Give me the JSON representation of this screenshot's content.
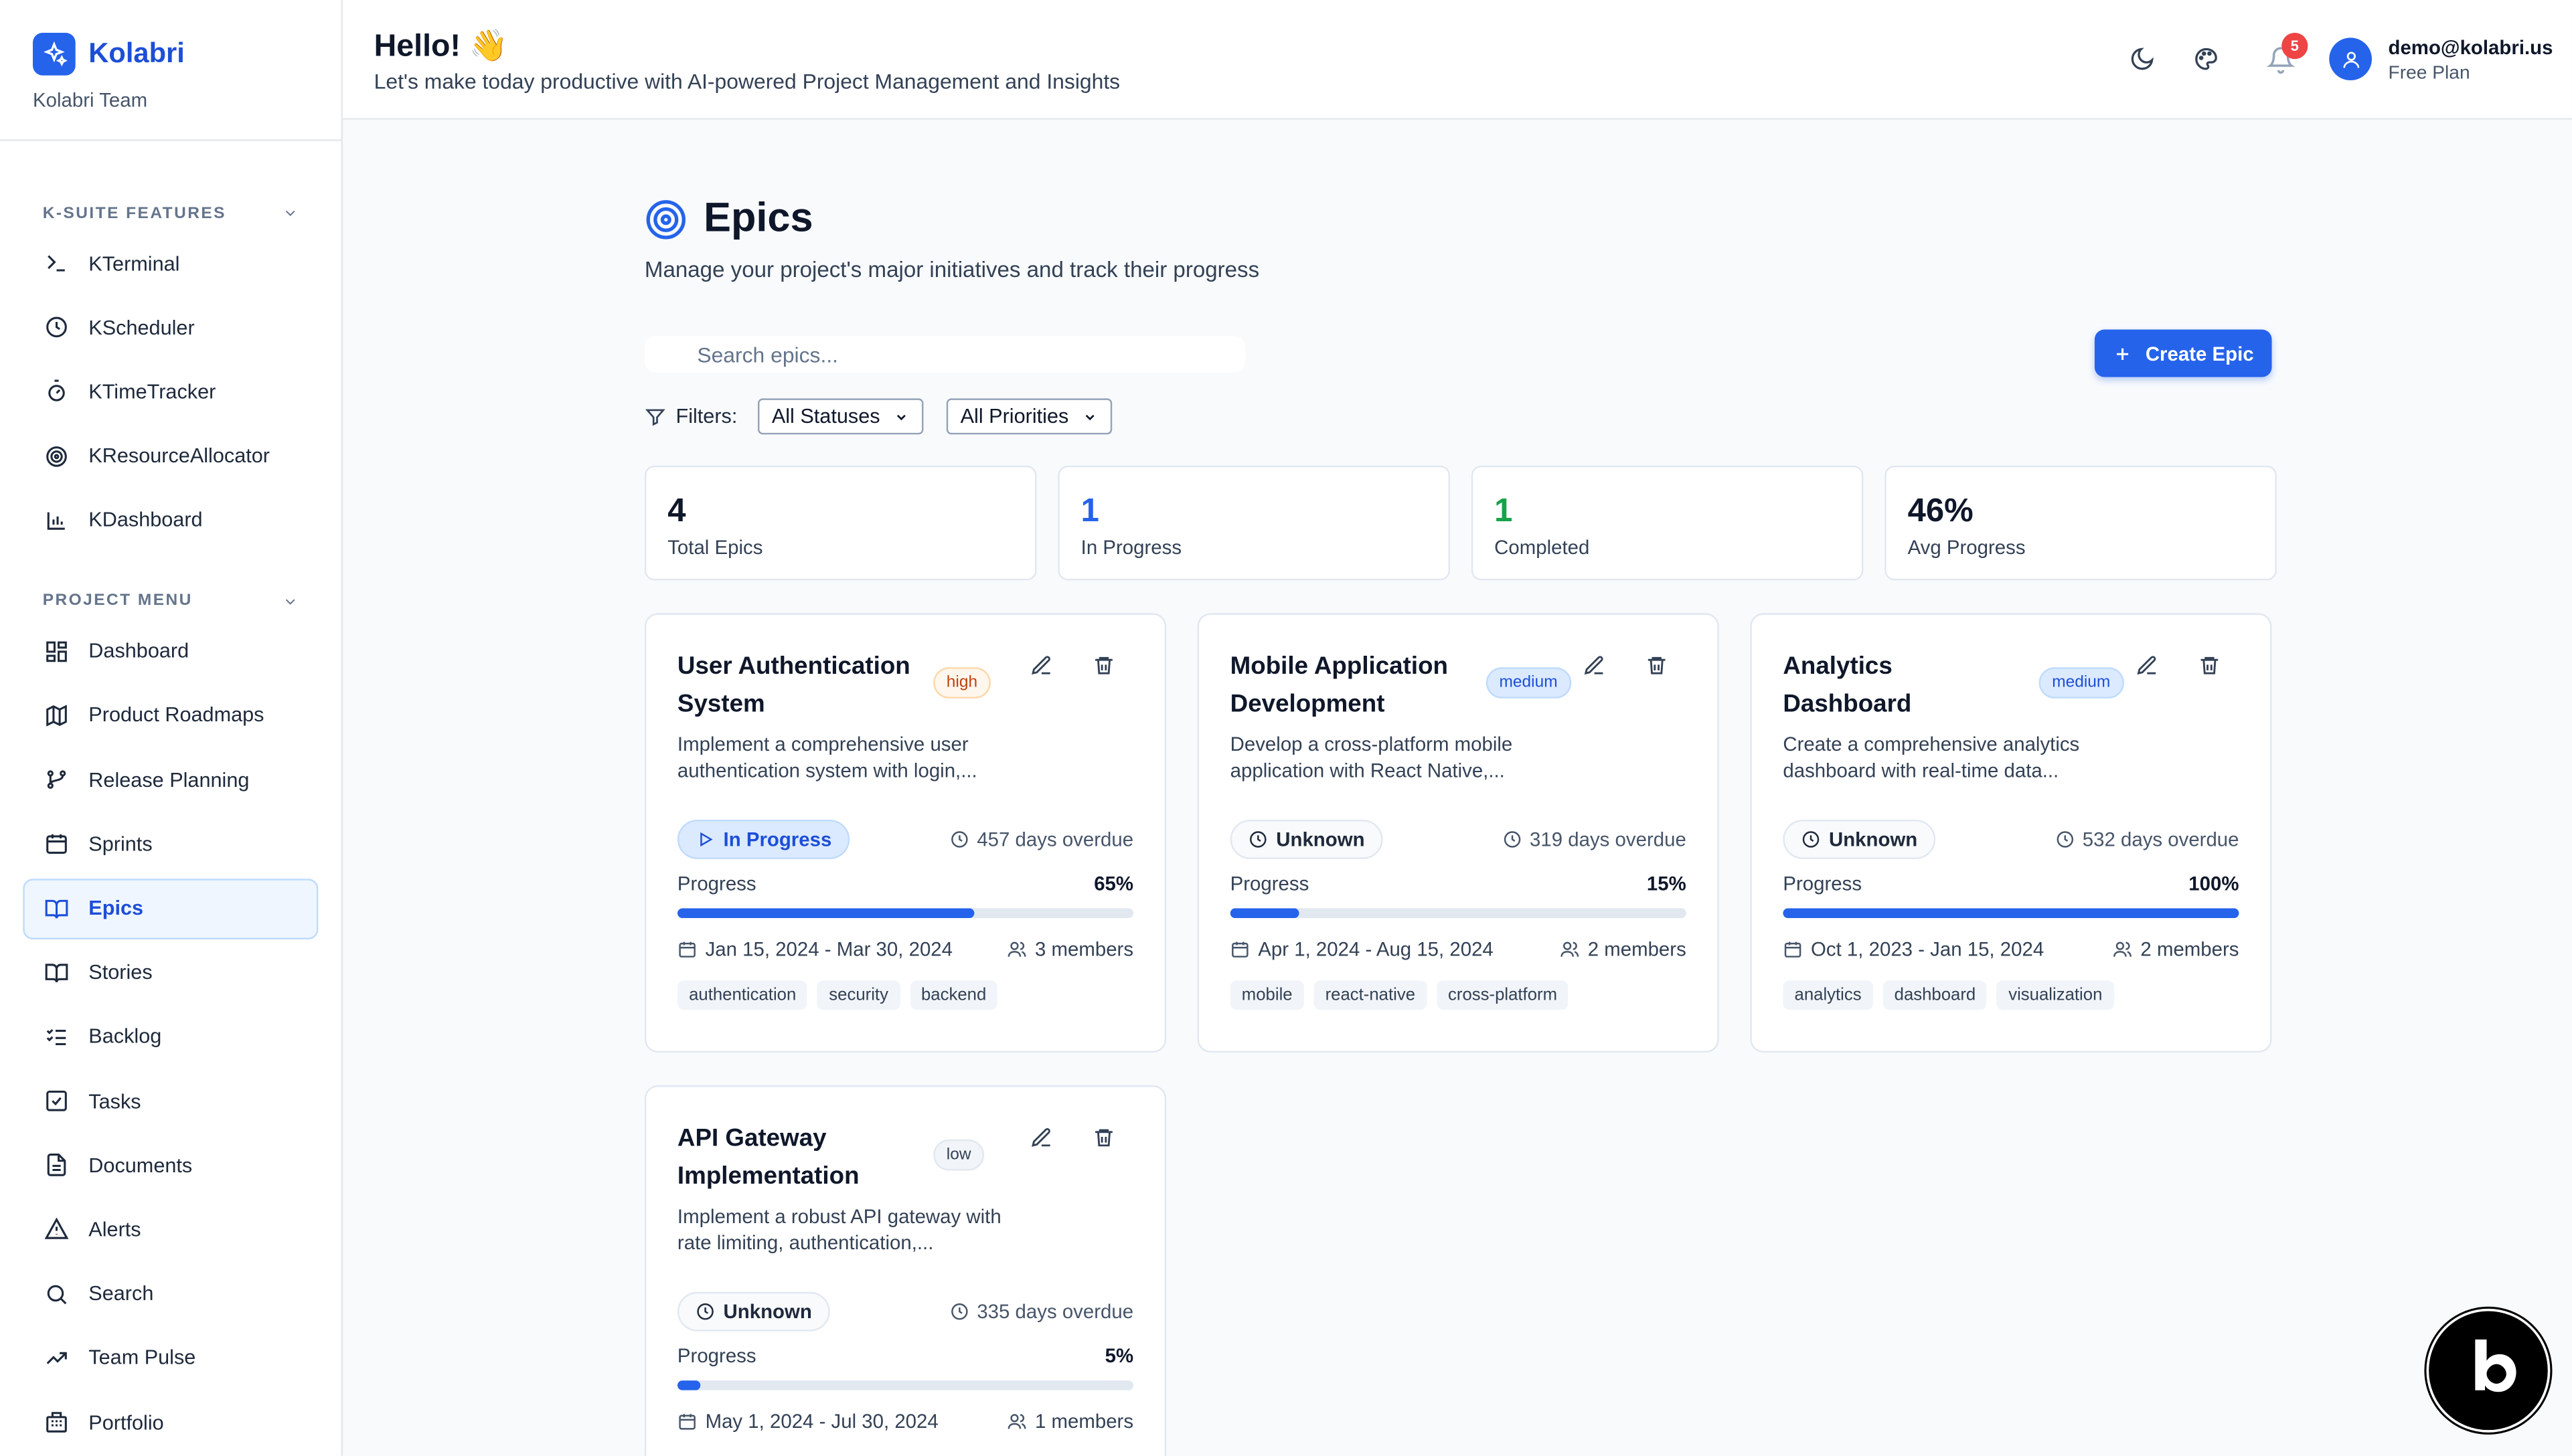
{
  "brand": {
    "name": "Kolabri",
    "team": "Kolabri Team"
  },
  "sidebar": {
    "ksuite_title": "K-SUITE FEATURES",
    "ksuite_items": [
      {
        "label": "KTerminal",
        "icon": "terminal-icon"
      },
      {
        "label": "KScheduler",
        "icon": "clock-icon"
      },
      {
        "label": "KTimeTracker",
        "icon": "timer-icon"
      },
      {
        "label": "KResourceAllocator",
        "icon": "target-icon"
      },
      {
        "label": "KDashboard",
        "icon": "bar-chart-icon"
      }
    ],
    "project_title": "PROJECT MENU",
    "project_items": [
      {
        "label": "Dashboard"
      },
      {
        "label": "Product Roadmaps"
      },
      {
        "label": "Release Planning"
      },
      {
        "label": "Sprints"
      },
      {
        "label": "Epics"
      },
      {
        "label": "Stories"
      },
      {
        "label": "Backlog"
      },
      {
        "label": "Tasks"
      },
      {
        "label": "Documents"
      },
      {
        "label": "Alerts"
      },
      {
        "label": "Search"
      },
      {
        "label": "Team Pulse"
      },
      {
        "label": "Portfolio"
      }
    ]
  },
  "header": {
    "greeting": "Hello! 👋",
    "subtitle": "Let's make today productive with AI-powered Project Management and Insights",
    "notification_count": "5",
    "user_email": "demo@kolabri.us",
    "user_plan": "Free Plan"
  },
  "page": {
    "title": "Epics",
    "subtitle": "Manage your project's major initiatives and track their progress",
    "search_placeholder": "Search epics...",
    "create_label": "Create Epic",
    "filters_label": "Filters:",
    "status_filter": "All Statuses",
    "priority_filter": "All Priorities"
  },
  "stats": [
    {
      "value": "4",
      "label": "Total Epics",
      "color": "#0f172a"
    },
    {
      "value": "1",
      "label": "In Progress",
      "color": "#2563eb"
    },
    {
      "value": "1",
      "label": "Completed",
      "color": "#16a34a"
    },
    {
      "value": "46%",
      "label": "Avg Progress",
      "color": "#0f172a"
    }
  ],
  "epics": [
    {
      "title": "User Authentication System",
      "priority": "high",
      "description": "Implement a comprehensive user authentication system with login,...",
      "status": "In Progress",
      "overdue": "457 days overdue",
      "progress_label": "Progress",
      "progress": "65%",
      "progress_value": 0.65,
      "dates": "Jan 15, 2024 - Mar 30, 2024",
      "members": "3 members",
      "tags": [
        "authentication",
        "security",
        "backend"
      ]
    },
    {
      "title": "Mobile Application Development",
      "priority": "medium",
      "description": "Develop a cross-platform mobile application with React Native,...",
      "status": "Unknown",
      "overdue": "319 days overdue",
      "progress_label": "Progress",
      "progress": "15%",
      "progress_value": 0.15,
      "dates": "Apr 1, 2024 - Aug 15, 2024",
      "members": "2 members",
      "tags": [
        "mobile",
        "react-native",
        "cross-platform"
      ]
    },
    {
      "title": "Analytics Dashboard",
      "priority": "medium",
      "description": "Create a comprehensive analytics dashboard with real-time data...",
      "status": "Unknown",
      "overdue": "532 days overdue",
      "progress_label": "Progress",
      "progress": "100%",
      "progress_value": 1.0,
      "dates": "Oct 1, 2023 - Jan 15, 2024",
      "members": "2 members",
      "tags": [
        "analytics",
        "dashboard",
        "visualization"
      ]
    },
    {
      "title": "API Gateway Implementation",
      "priority": "low",
      "description": "Implement a robust API gateway with rate limiting, authentication,...",
      "status": "Unknown",
      "overdue": "335 days overdue",
      "progress_label": "Progress",
      "progress": "5%",
      "progress_value": 0.05,
      "dates": "May 1, 2024 - Jul 30, 2024",
      "members": "1 members",
      "tags": []
    }
  ],
  "watermark": "POWERED BY BOLT.NEW MADE IN BOLT.NEW"
}
